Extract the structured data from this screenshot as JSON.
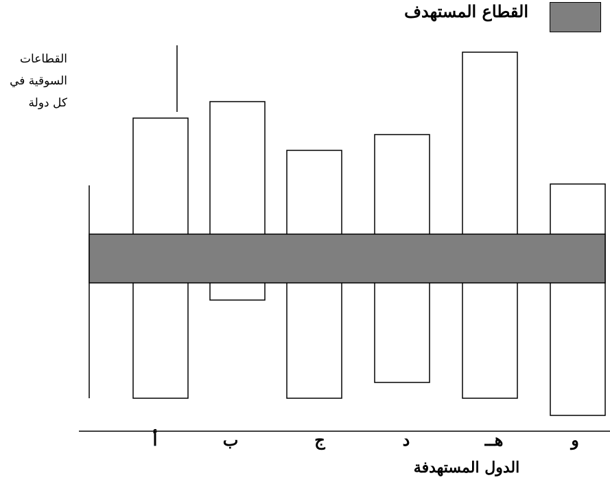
{
  "legend": {
    "label": "القطاع المستهدف",
    "color": "#7f7f7f"
  },
  "y_axis_label": [
    "القطاعات",
    "السوقية في",
    "كل دولة"
  ],
  "x_axis_title": "الدول المستهدفة",
  "countries": [
    "أ",
    "ب",
    "ج",
    "د",
    "هــ",
    "و"
  ]
}
